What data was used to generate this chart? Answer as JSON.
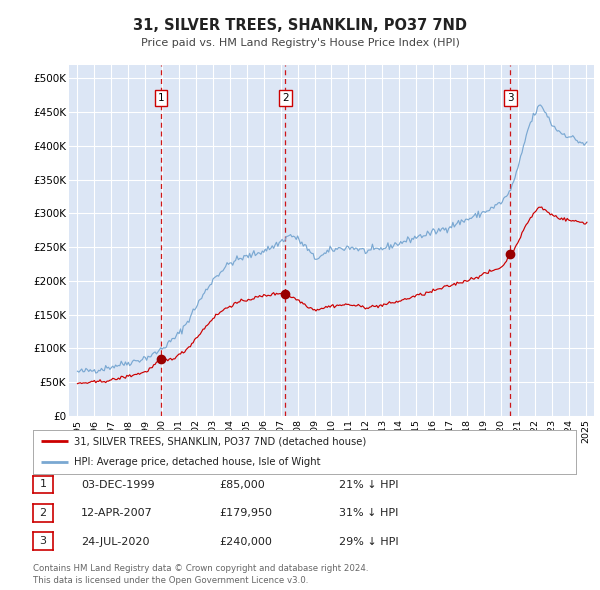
{
  "title": "31, SILVER TREES, SHANKLIN, PO37 7ND",
  "subtitle": "Price paid vs. HM Land Registry's House Price Index (HPI)",
  "xlim": [
    1994.5,
    2025.5
  ],
  "ylim": [
    0,
    520000
  ],
  "yticks": [
    0,
    50000,
    100000,
    150000,
    200000,
    250000,
    300000,
    350000,
    400000,
    450000,
    500000
  ],
  "background_color": "#dce6f5",
  "grid_color": "#ffffff",
  "red_line_color": "#cc0000",
  "blue_line_color": "#7aa8d2",
  "sale_marker_color": "#990000",
  "vline_color": "#cc0000",
  "transactions": [
    {
      "year": 1999.92,
      "price": 85000,
      "label": "1"
    },
    {
      "year": 2007.28,
      "price": 179950,
      "label": "2"
    },
    {
      "year": 2020.56,
      "price": 240000,
      "label": "3"
    }
  ],
  "transaction_dates": [
    "03-DEC-1999",
    "12-APR-2007",
    "24-JUL-2020"
  ],
  "transaction_prices": [
    "£85,000",
    "£179,950",
    "£240,000"
  ],
  "transaction_hpi": [
    "21% ↓ HPI",
    "31% ↓ HPI",
    "29% ↓ HPI"
  ],
  "legend_red_label": "31, SILVER TREES, SHANKLIN, PO37 7ND (detached house)",
  "legend_blue_label": "HPI: Average price, detached house, Isle of Wight",
  "footnote": "Contains HM Land Registry data © Crown copyright and database right 2024.\nThis data is licensed under the Open Government Licence v3.0."
}
